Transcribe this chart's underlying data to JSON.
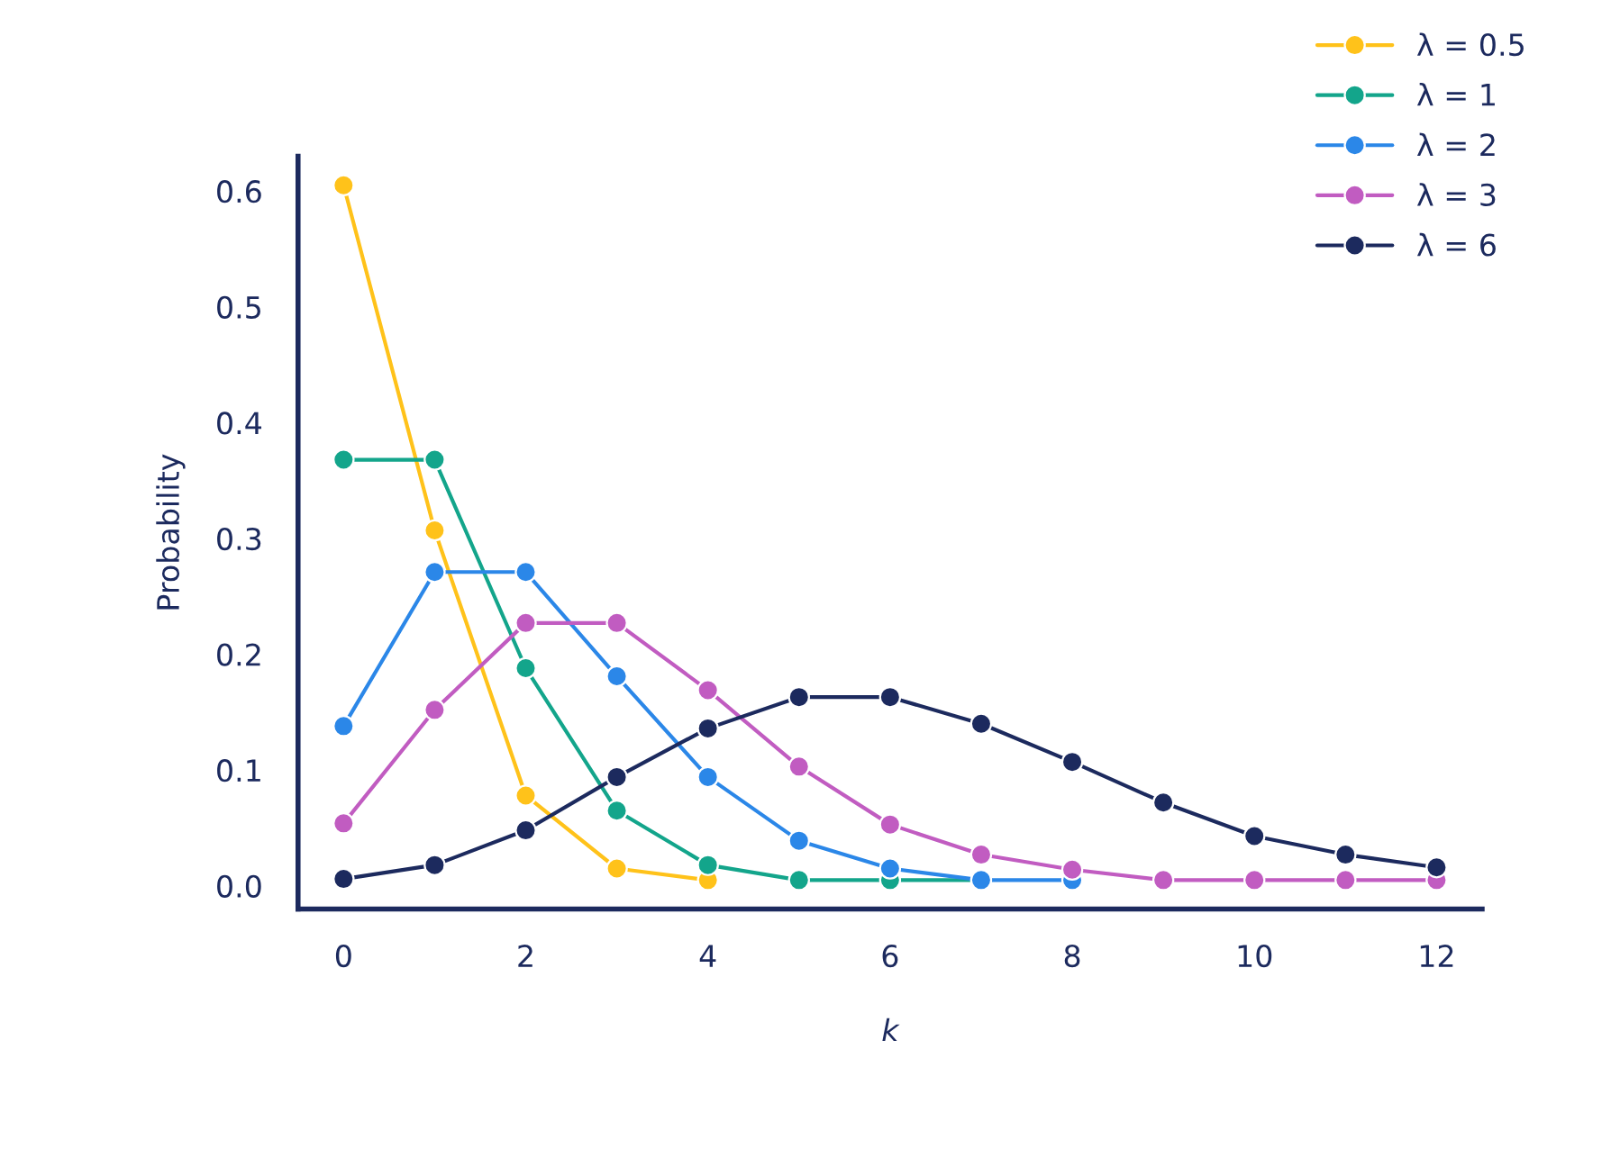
{
  "chart_data": {
    "type": "line",
    "xlabel": "k",
    "ylabel": "Probability",
    "xlim": [
      -0.5,
      12.5
    ],
    "ylim": [
      -0.02,
      0.63
    ],
    "xticks": [
      0,
      2,
      4,
      6,
      8,
      10,
      12
    ],
    "yticks": [
      {
        "value": 0,
        "label": "0.0"
      },
      0.1,
      0.2,
      0.3,
      0.4,
      0.5,
      0.6
    ],
    "grid": false,
    "legend": "top right",
    "marker": "circle",
    "line_style": "solid",
    "series": [
      {
        "name": "λ = 0.5",
        "color": "#ffc21a",
        "x": [
          0,
          1,
          2,
          3,
          4
        ],
        "values": [
          0.605,
          0.307,
          0.078,
          0.015,
          0.005
        ]
      },
      {
        "name": "λ = 1",
        "color": "#13a58b",
        "x": [
          0,
          1,
          2,
          3,
          4,
          5,
          6,
          7
        ],
        "values": [
          0.368,
          0.368,
          0.188,
          0.065,
          0.018,
          0.005,
          0.005,
          0.005
        ]
      },
      {
        "name": "λ = 2",
        "color": "#2b87e8",
        "x": [
          0,
          1,
          2,
          3,
          4,
          5,
          6,
          7,
          8
        ],
        "values": [
          0.138,
          0.271,
          0.271,
          0.181,
          0.094,
          0.039,
          0.015,
          0.005,
          0.005
        ]
      },
      {
        "name": "λ = 3",
        "color": "#c15cc1",
        "x": [
          0,
          1,
          2,
          3,
          4,
          5,
          6,
          7,
          8,
          9,
          10,
          11,
          12
        ],
        "values": [
          0.054,
          0.152,
          0.227,
          0.227,
          0.169,
          0.103,
          0.053,
          0.027,
          0.014,
          0.005,
          0.005,
          0.005,
          0.005
        ]
      },
      {
        "name": "λ = 6",
        "color": "#1c2a5e",
        "x": [
          0,
          1,
          2,
          3,
          4,
          5,
          6,
          7,
          8,
          9,
          10,
          11,
          12
        ],
        "values": [
          0.006,
          0.018,
          0.048,
          0.094,
          0.136,
          0.163,
          0.163,
          0.14,
          0.107,
          0.072,
          0.043,
          0.027,
          0.016
        ]
      }
    ]
  }
}
